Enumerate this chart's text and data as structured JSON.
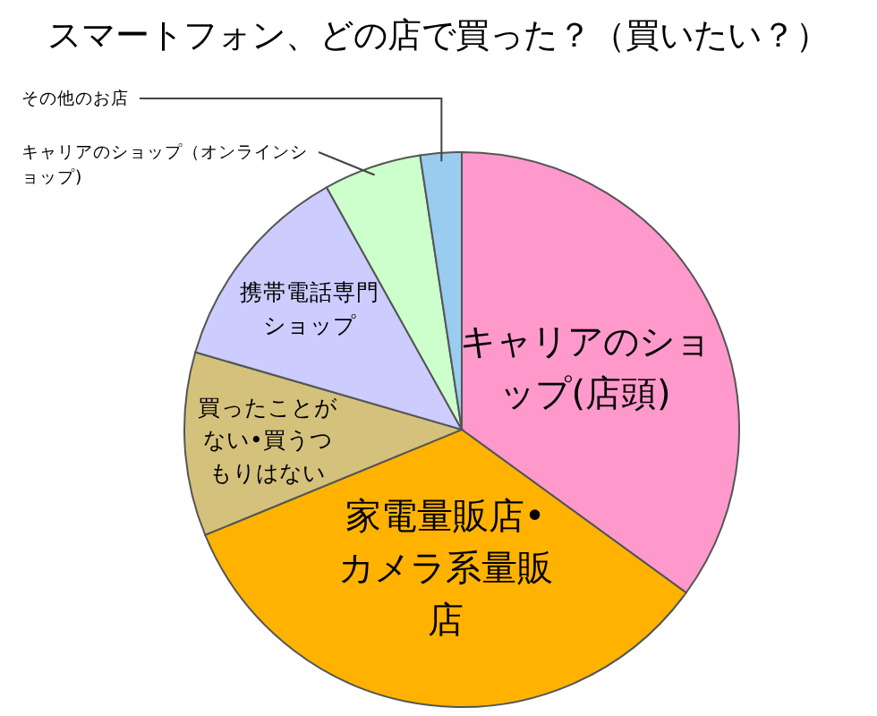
{
  "chart_data": {
    "type": "pie",
    "title": "スマートフォン、どの店で買った？（買いたい？）",
    "categories": [
      "キャリアのショップ(店頭)",
      "家電量販店•カメラ系量販店",
      "買ったことがない•買うつもりはない",
      "携帯電話専門ショップ",
      "キャリアのショップ（オンラインショップ)",
      "その他のお店"
    ],
    "values": [
      35,
      33.8,
      10.7,
      12.4,
      5.7,
      2.4
    ],
    "colors": [
      "#ff99cc",
      "#ffb300",
      "#d4c27c",
      "#ccccff",
      "#ccffcc",
      "#99ccee"
    ]
  }
}
